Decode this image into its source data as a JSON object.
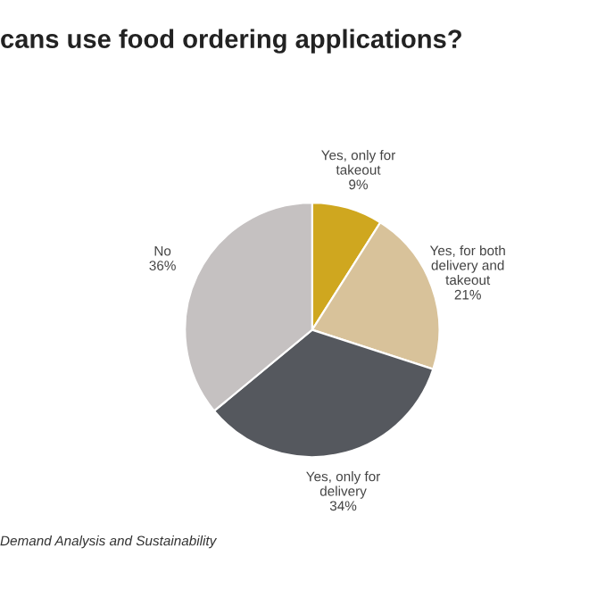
{
  "chart_data": {
    "type": "pie",
    "title": "cans use food ordering applications?",
    "categories": [
      "Yes, only for\ntakeout",
      "Yes, for both\ndelivery and\ntakeout",
      "Yes, only for\ndelivery",
      "No"
    ],
    "values": [
      9,
      21,
      34,
      36
    ],
    "value_labels": [
      "9%",
      "21%",
      "34%",
      "36%"
    ],
    "colors": [
      "#cfa71f",
      "#d8c29a",
      "#55585e",
      "#c5c1c1"
    ],
    "annotations": [
      "Demand Analysis and Sustainability"
    ],
    "legend": false
  }
}
